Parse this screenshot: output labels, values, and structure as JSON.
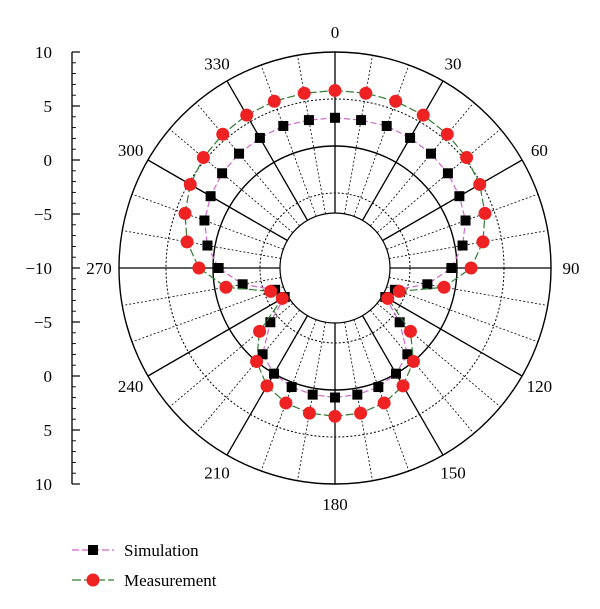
{
  "chart_data": {
    "type": "scatter",
    "projection": "polar",
    "theta_zero": "top",
    "theta_direction": "clockwise",
    "theta_ticks": [
      "0",
      "30",
      "60",
      "90",
      "120",
      "150",
      "180",
      "210",
      "240",
      "270",
      "300",
      "330"
    ],
    "theta_tick_degrees": [
      0,
      30,
      60,
      90,
      120,
      150,
      180,
      210,
      240,
      270,
      300,
      330
    ],
    "r_axis": {
      "tick_labels": [
        "10",
        "5",
        "0",
        "−5",
        "−10",
        "−5",
        "0",
        "5",
        "10"
      ],
      "upper_tick_values": [
        10,
        5,
        0,
        -5,
        -10
      ],
      "rlim": [
        -10,
        10
      ]
    },
    "grid": "on",
    "legend_position": "bottom-left",
    "series": [
      {
        "name": "Simulation",
        "color": "#000000",
        "line_color": "#cc66cc",
        "marker": "square",
        "points": [
          {
            "theta": 0,
            "r": 3.0
          },
          {
            "theta": 10,
            "r": 3.0
          },
          {
            "theta": 20,
            "r": 3.1
          },
          {
            "theta": 30,
            "r": 3.0
          },
          {
            "theta": 40,
            "r": 2.9
          },
          {
            "theta": 50,
            "r": 2.7
          },
          {
            "theta": 60,
            "r": 2.3
          },
          {
            "theta": 70,
            "r": 1.8
          },
          {
            "theta": 80,
            "r": 0.8
          },
          {
            "theta": 90,
            "r": -0.6
          },
          {
            "theta": 100,
            "r": -3.0
          },
          {
            "theta": 110,
            "r": -6.2
          },
          {
            "theta": 120,
            "r": -6.8
          },
          {
            "theta": 130,
            "r": -4.0
          },
          {
            "theta": 140,
            "r": -1.0
          },
          {
            "theta": 150,
            "r": 0.0
          },
          {
            "theta": 160,
            "r": 0.5
          },
          {
            "theta": 170,
            "r": 0.7
          },
          {
            "theta": 180,
            "r": 0.8
          },
          {
            "theta": 190,
            "r": 0.7
          },
          {
            "theta": 200,
            "r": 0.5
          },
          {
            "theta": 210,
            "r": 0.0
          },
          {
            "theta": 220,
            "r": -1.0
          },
          {
            "theta": 230,
            "r": -4.0
          },
          {
            "theta": 240,
            "r": -6.8
          },
          {
            "theta": 250,
            "r": -6.2
          },
          {
            "theta": 260,
            "r": -3.0
          },
          {
            "theta": 270,
            "r": -0.6
          },
          {
            "theta": 280,
            "r": 0.8
          },
          {
            "theta": 290,
            "r": 1.8
          },
          {
            "theta": 300,
            "r": 2.3
          },
          {
            "theta": 310,
            "r": 2.7
          },
          {
            "theta": 320,
            "r": 2.9
          },
          {
            "theta": 330,
            "r": 3.0
          },
          {
            "theta": 340,
            "r": 3.1
          },
          {
            "theta": 350,
            "r": 3.0
          }
        ]
      },
      {
        "name": "Measurement",
        "color": "#ee2222",
        "line_color": "#2e7d32",
        "marker": "circle",
        "points": [
          {
            "theta": 0,
            "r": 5.9
          },
          {
            "theta": 10,
            "r": 5.9
          },
          {
            "theta": 20,
            "r": 5.9
          },
          {
            "theta": 30,
            "r": 5.8
          },
          {
            "theta": 40,
            "r": 5.6
          },
          {
            "theta": 50,
            "r": 5.3
          },
          {
            "theta": 60,
            "r": 4.8
          },
          {
            "theta": 70,
            "r": 4.0
          },
          {
            "theta": 80,
            "r": 3.0
          },
          {
            "theta": 90,
            "r": 1.5
          },
          {
            "theta": 100,
            "r": -1.2
          },
          {
            "theta": 110,
            "r": -5.7
          },
          {
            "theta": 120,
            "r": -6.5
          },
          {
            "theta": 130,
            "r": -2.5
          },
          {
            "theta": 140,
            "r": 0.0
          },
          {
            "theta": 150,
            "r": 1.5
          },
          {
            "theta": 160,
            "r": 2.3
          },
          {
            "theta": 170,
            "r": 2.7
          },
          {
            "theta": 180,
            "r": 2.8
          },
          {
            "theta": 190,
            "r": 2.7
          },
          {
            "theta": 200,
            "r": 2.3
          },
          {
            "theta": 210,
            "r": 1.5
          },
          {
            "theta": 220,
            "r": 0.0
          },
          {
            "theta": 230,
            "r": -2.5
          },
          {
            "theta": 240,
            "r": -6.5
          },
          {
            "theta": 250,
            "r": -5.7
          },
          {
            "theta": 260,
            "r": -1.2
          },
          {
            "theta": 270,
            "r": 1.5
          },
          {
            "theta": 280,
            "r": 3.0
          },
          {
            "theta": 290,
            "r": 4.0
          },
          {
            "theta": 300,
            "r": 4.8
          },
          {
            "theta": 310,
            "r": 5.3
          },
          {
            "theta": 320,
            "r": 5.6
          },
          {
            "theta": 330,
            "r": 5.8
          },
          {
            "theta": 340,
            "r": 5.9
          },
          {
            "theta": 350,
            "r": 5.9
          }
        ]
      }
    ]
  }
}
